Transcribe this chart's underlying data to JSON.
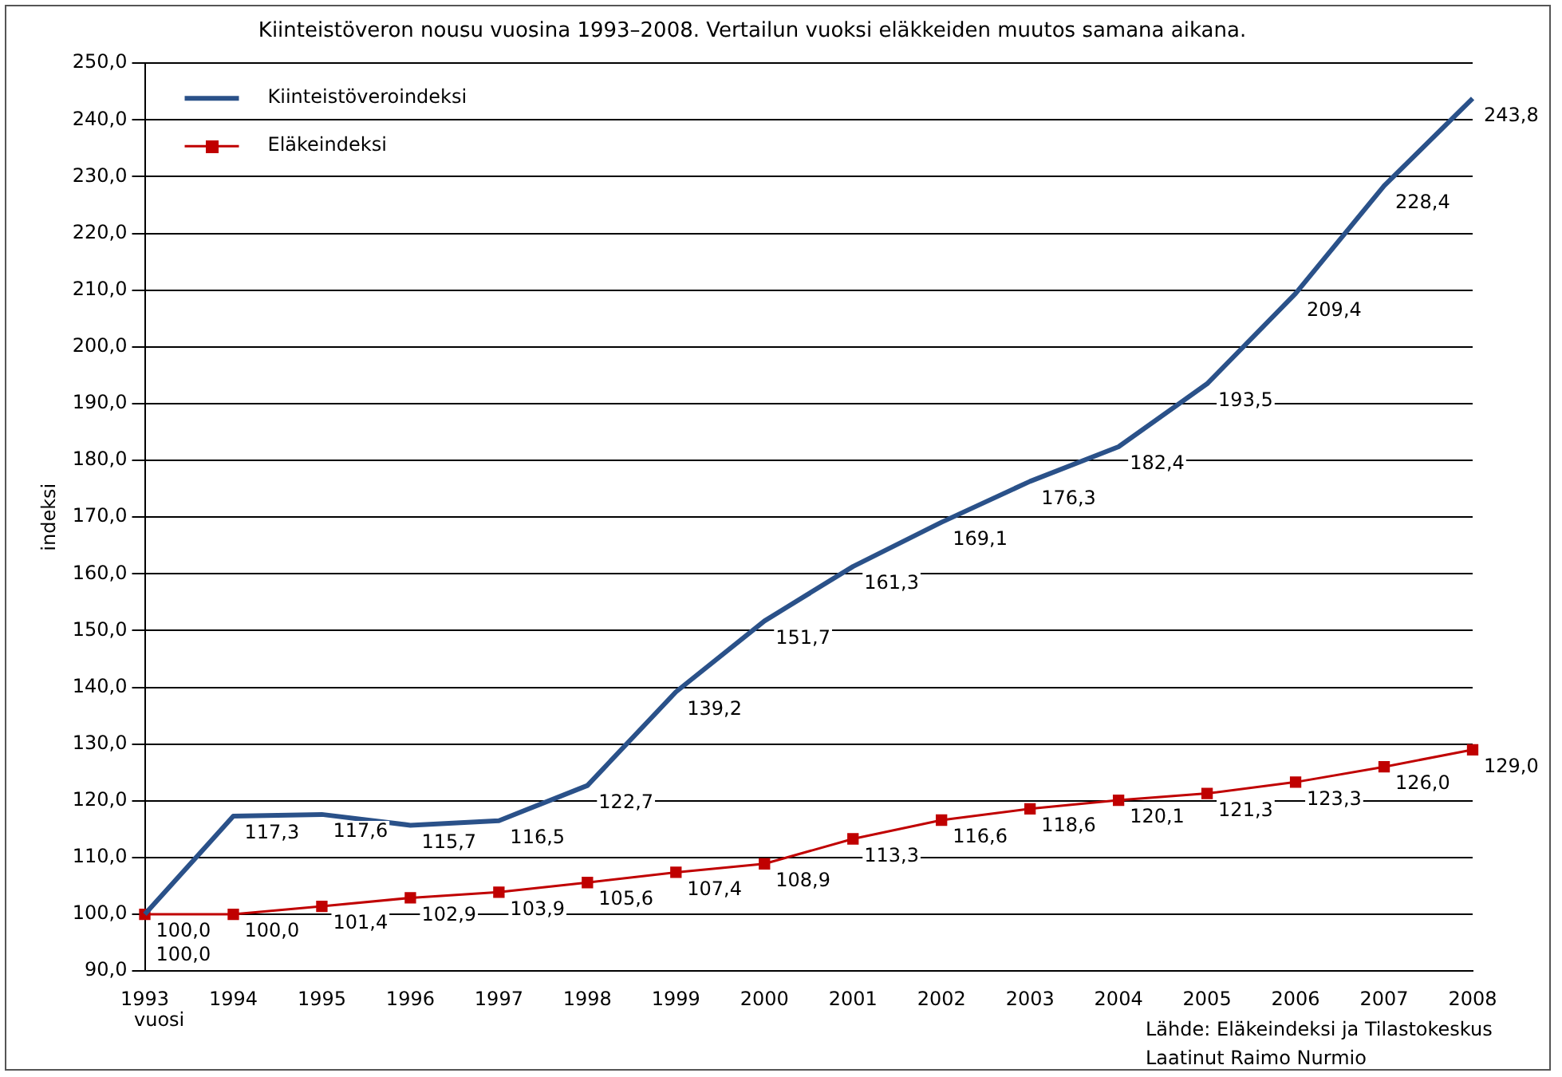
{
  "chart_data": {
    "type": "line",
    "title": "Kiinteistöveron nousu vuosina 1993–2008. Vertailun vuoksi eläkkeiden muutos samana aikana.",
    "xlabel": "vuosi",
    "ylabel": "indeksi",
    "categories": [
      "1993",
      "1994",
      "1995",
      "1996",
      "1997",
      "1998",
      "1999",
      "2000",
      "2001",
      "2002",
      "2003",
      "2004",
      "2005",
      "2006",
      "2007",
      "2008"
    ],
    "series": [
      {
        "name": "Kiinteistöveroindeksi",
        "color": "#2a5189",
        "marker": "none",
        "line_style": "solid",
        "values": [
          100.0,
          117.3,
          117.6,
          115.7,
          116.5,
          122.7,
          139.2,
          151.7,
          161.3,
          169.1,
          176.3,
          182.4,
          193.5,
          209.4,
          228.4,
          243.8
        ],
        "value_labels": [
          "100,0",
          "117,3",
          "117,6",
          "115,7",
          "116,5",
          "122,7",
          "139,2",
          "151,7",
          "161,3",
          "169,1",
          "176,3",
          "182,4",
          "193,5",
          "209,4",
          "228,4",
          "243,8"
        ]
      },
      {
        "name": "Eläkeindeksi",
        "color": "#c00000",
        "marker": "square",
        "line_style": "solid",
        "values": [
          100.0,
          100.0,
          101.4,
          102.9,
          103.9,
          105.6,
          107.4,
          108.9,
          113.3,
          116.6,
          118.6,
          120.1,
          121.3,
          123.3,
          126.0,
          129.0
        ],
        "value_labels": [
          "100,0",
          "100,0",
          "101,4",
          "102,9",
          "103,9",
          "105,6",
          "107,4",
          "108,9",
          "113,3",
          "116,6",
          "118,6",
          "120,1",
          "121,3",
          "123,3",
          "126,0",
          "129,0"
        ]
      }
    ],
    "ylim": [
      90,
      250
    ],
    "yticks": [
      {
        "value": 90,
        "label": "90,0"
      },
      {
        "value": 100,
        "label": "100,0"
      },
      {
        "value": 110,
        "label": "110,0"
      },
      {
        "value": 120,
        "label": "120,0"
      },
      {
        "value": 130,
        "label": "130,0"
      },
      {
        "value": 140,
        "label": "140,0"
      },
      {
        "value": 150,
        "label": "150,0"
      },
      {
        "value": 160,
        "label": "160,0"
      },
      {
        "value": 170,
        "label": "170,0"
      },
      {
        "value": 180,
        "label": "180,0"
      },
      {
        "value": 190,
        "label": "190,0"
      },
      {
        "value": 200,
        "label": "200,0"
      },
      {
        "value": 210,
        "label": "210,0"
      },
      {
        "value": 220,
        "label": "220,0"
      },
      {
        "value": 230,
        "label": "230,0"
      },
      {
        "value": 240,
        "label": "240,0"
      },
      {
        "value": 250,
        "label": "250,0"
      }
    ],
    "grid": "y",
    "legend": "top left",
    "annotations": [
      "Lähde: Eläkeindeksi ja Tilastokeskus",
      "Laatinut Raimo Nurmio"
    ]
  }
}
